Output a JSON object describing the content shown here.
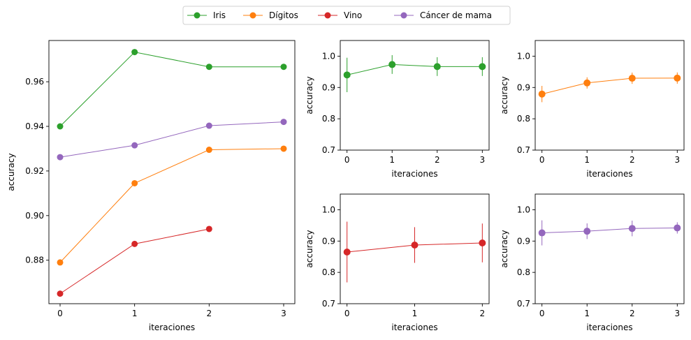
{
  "chart_data": [
    {
      "type": "line",
      "panel": "main",
      "xlabel": "iteraciones",
      "ylabel": "accuracy",
      "xlim": [
        -0.15,
        3.15
      ],
      "ylim": [
        0.8605,
        0.9785
      ],
      "xticks": [
        0,
        1,
        2,
        3
      ],
      "xtick_labels": [
        "0",
        "1",
        "2",
        "3"
      ],
      "yticks": [
        0.88,
        0.9,
        0.92,
        0.94,
        0.96
      ],
      "ytick_labels": [
        "0.88",
        "0.90",
        "0.92",
        "0.94",
        "0.96"
      ],
      "grid": false,
      "series": [
        {
          "name": "Iris",
          "color": "#2ca02c",
          "x": [
            0,
            1,
            2,
            3
          ],
          "values": [
            0.94,
            0.9733,
            0.9667,
            0.9667
          ]
        },
        {
          "name": "Dígitos",
          "color": "#ff7f0e",
          "x": [
            0,
            1,
            2,
            3
          ],
          "values": [
            0.879,
            0.9145,
            0.9295,
            0.93
          ]
        },
        {
          "name": "Vino",
          "color": "#d62728",
          "x": [
            0,
            1,
            2
          ],
          "values": [
            0.865,
            0.8873,
            0.894
          ]
        },
        {
          "name": "Cáncer de mama",
          "color": "#9467bd",
          "x": [
            0,
            1,
            2,
            3
          ],
          "values": [
            0.9262,
            0.9315,
            0.9403,
            0.942
          ]
        }
      ]
    },
    {
      "type": "line",
      "panel": "iris",
      "xlabel": "iteraciones",
      "ylabel": "accuracy",
      "xlim": [
        -0.15,
        3.15
      ],
      "ylim": [
        0.7,
        1.05
      ],
      "xticks": [
        0,
        1,
        2,
        3
      ],
      "xtick_labels": [
        "0",
        "1",
        "2",
        "3"
      ],
      "yticks": [
        0.7,
        0.8,
        0.9,
        1.0
      ],
      "ytick_labels": [
        "0.7",
        "0.8",
        "0.9",
        "1.0"
      ],
      "grid": false,
      "series": [
        {
          "color": "#2ca02c",
          "x": [
            0,
            1,
            2,
            3
          ],
          "values": [
            0.94,
            0.9733,
            0.9667,
            0.9667
          ],
          "yerr": [
            0.055,
            0.03,
            0.03,
            0.03
          ]
        }
      ]
    },
    {
      "type": "line",
      "panel": "digitos",
      "xlabel": "iteraciones",
      "ylabel": "accuracy",
      "xlim": [
        -0.15,
        3.15
      ],
      "ylim": [
        0.7,
        1.05
      ],
      "xticks": [
        0,
        1,
        2,
        3
      ],
      "xtick_labels": [
        "0",
        "1",
        "2",
        "3"
      ],
      "yticks": [
        0.7,
        0.8,
        0.9,
        1.0
      ],
      "ytick_labels": [
        "0.7",
        "0.8",
        "0.9",
        "1.0"
      ],
      "grid": false,
      "series": [
        {
          "color": "#ff7f0e",
          "x": [
            0,
            1,
            2,
            3
          ],
          "values": [
            0.879,
            0.9145,
            0.9295,
            0.93
          ],
          "yerr": [
            0.026,
            0.018,
            0.018,
            0.018
          ]
        }
      ]
    },
    {
      "type": "line",
      "panel": "vino",
      "xlabel": "iteraciones",
      "ylabel": "accuracy",
      "xlim": [
        -0.1,
        2.1
      ],
      "ylim": [
        0.7,
        1.05
      ],
      "xticks": [
        0,
        1,
        2
      ],
      "xtick_labels": [
        "0",
        "1",
        "2"
      ],
      "yticks": [
        0.7,
        0.8,
        0.9,
        1.0
      ],
      "ytick_labels": [
        "0.7",
        "0.8",
        "0.9",
        "1.0"
      ],
      "grid": false,
      "series": [
        {
          "color": "#d62728",
          "x": [
            0,
            1,
            2
          ],
          "values": [
            0.865,
            0.8873,
            0.894
          ],
          "yerr": [
            0.097,
            0.057,
            0.062
          ]
        }
      ]
    },
    {
      "type": "line",
      "panel": "cancer",
      "xlabel": "iteraciones",
      "ylabel": "accuracy",
      "xlim": [
        -0.15,
        3.15
      ],
      "ylim": [
        0.7,
        1.05
      ],
      "xticks": [
        0,
        1,
        2,
        3
      ],
      "xtick_labels": [
        "0",
        "1",
        "2",
        "3"
      ],
      "yticks": [
        0.7,
        0.8,
        0.9,
        1.0
      ],
      "ytick_labels": [
        "0.7",
        "0.8",
        "0.9",
        "1.0"
      ],
      "grid": false,
      "series": [
        {
          "color": "#9467bd",
          "x": [
            0,
            1,
            2,
            3
          ],
          "values": [
            0.9262,
            0.9315,
            0.9403,
            0.942
          ],
          "yerr": [
            0.04,
            0.025,
            0.025,
            0.018
          ]
        }
      ]
    }
  ],
  "legend": {
    "placement": "top-center",
    "entries": [
      {
        "label": "Iris",
        "color": "#2ca02c"
      },
      {
        "label": "Dígitos",
        "color": "#ff7f0e"
      },
      {
        "label": "Vino",
        "color": "#d62728"
      },
      {
        "label": "Cáncer de mama",
        "color": "#9467bd"
      }
    ]
  }
}
